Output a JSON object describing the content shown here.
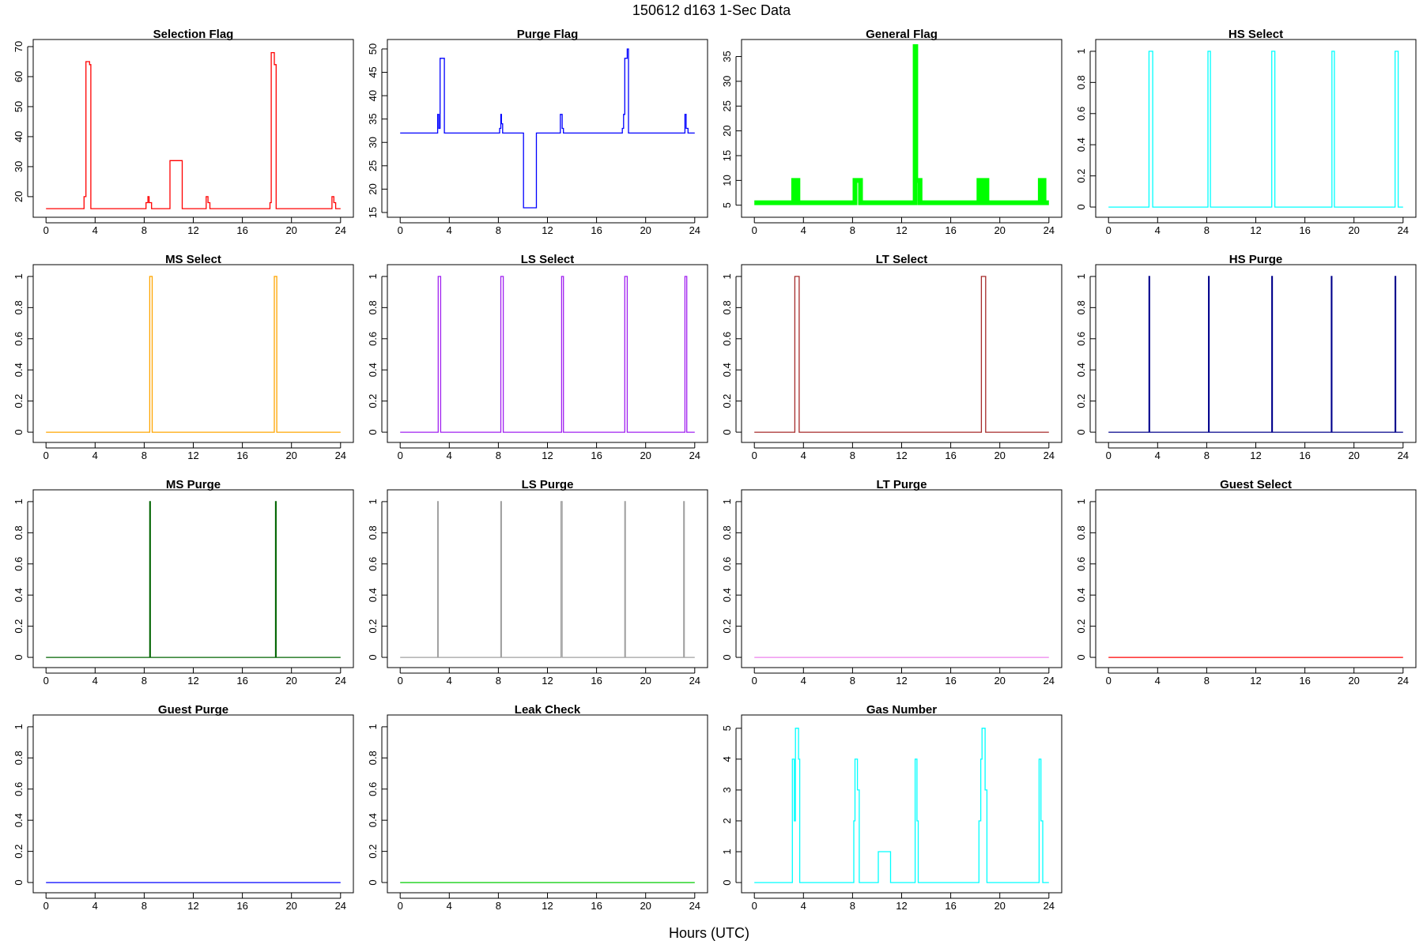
{
  "title": "150612   d163   1-Sec Data",
  "xlabel": "Hours (UTC)",
  "chart_data": [
    {
      "type": "line",
      "title": "Selection Flag",
      "color": "#ff0000",
      "xlim": [
        0,
        24
      ],
      "ylim": [
        15.5,
        70
      ],
      "xticks": [
        0,
        4,
        8,
        12,
        16,
        20,
        24
      ],
      "yticks": [
        20,
        30,
        40,
        50,
        60,
        70
      ],
      "x": [
        0,
        3.1,
        3.1,
        3.25,
        3.25,
        3.55,
        3.55,
        3.65,
        3.65,
        8.15,
        8.15,
        8.3,
        8.3,
        8.4,
        8.4,
        8.6,
        8.6,
        10.1,
        10.1,
        11.1,
        11.1,
        13.05,
        13.05,
        13.2,
        13.2,
        13.35,
        13.35,
        18.25,
        18.25,
        18.35,
        18.35,
        18.6,
        18.6,
        18.75,
        18.75,
        23.3,
        23.3,
        23.45,
        23.45,
        23.6,
        23.6,
        24
      ],
      "y": [
        16,
        16,
        20,
        20,
        65,
        65,
        64,
        64,
        16,
        16,
        18,
        18,
        20,
        20,
        18,
        18,
        16,
        16,
        32,
        32,
        16,
        16,
        20,
        20,
        18,
        18,
        16,
        16,
        18,
        18,
        68,
        68,
        64,
        64,
        16,
        16,
        20,
        20,
        18,
        18,
        16,
        16
      ]
    },
    {
      "type": "line",
      "title": "Purge Flag",
      "color": "#0000ff",
      "xlim": [
        0,
        24
      ],
      "ylim": [
        15.5,
        50.5
      ],
      "xticks": [
        0,
        4,
        8,
        12,
        16,
        20,
        24
      ],
      "yticks": [
        15,
        20,
        25,
        30,
        35,
        40,
        45,
        50
      ],
      "x": [
        0,
        3.05,
        3.05,
        3.15,
        3.15,
        3.25,
        3.25,
        3.6,
        3.6,
        8.1,
        8.1,
        8.2,
        8.2,
        8.25,
        8.25,
        8.35,
        8.35,
        10.05,
        10.05,
        11.1,
        11.1,
        13.05,
        13.05,
        13.2,
        13.2,
        13.3,
        13.3,
        18.1,
        18.1,
        18.2,
        18.2,
        18.3,
        18.3,
        18.5,
        18.5,
        18.6,
        18.6,
        23.2,
        23.2,
        23.3,
        23.3,
        23.45,
        23.45,
        24
      ],
      "y": [
        32,
        32,
        36,
        36,
        33,
        33,
        48,
        48,
        32,
        32,
        33,
        33,
        36,
        36,
        34,
        34,
        32,
        32,
        16,
        16,
        32,
        32,
        36,
        36,
        33,
        33,
        32,
        32,
        33,
        33,
        36,
        36,
        48,
        48,
        50,
        50,
        32,
        32,
        36,
        36,
        33,
        33,
        32,
        32
      ]
    },
    {
      "type": "line",
      "title": "General Flag",
      "color": "#00ff00",
      "xlim": [
        0,
        24
      ],
      "ylim": [
        4,
        37
      ],
      "xticks": [
        0,
        4,
        8,
        12,
        16,
        20,
        24
      ],
      "yticks": [
        5,
        10,
        15,
        20,
        25,
        30,
        35
      ],
      "x": [
        0,
        3.2,
        3.2,
        3.55,
        3.55,
        8.2,
        8.2,
        8.65,
        8.65,
        13.1,
        13.1,
        13.15,
        13.15,
        13.25,
        13.25,
        13.5,
        13.5,
        18.3,
        18.3,
        18.55,
        18.55,
        18.75,
        18.75,
        18.95,
        18.95,
        23.3,
        23.3,
        23.6,
        23.6,
        24
      ],
      "y": [
        5.5,
        5.5,
        10,
        10,
        5.5,
        5.5,
        10,
        10,
        5.5,
        5.5,
        37,
        37,
        10,
        10,
        10,
        10,
        5.5,
        5.5,
        10,
        10,
        5.5,
        5.5,
        10,
        10,
        5.5,
        5.5,
        10,
        10,
        5.5,
        5.5
      ]
    },
    {
      "type": "line",
      "title": "HS Select",
      "color": "#00ffff",
      "xlim": [
        0,
        24
      ],
      "ylim": [
        -0.02,
        1.03
      ],
      "xticks": [
        0,
        4,
        8,
        12,
        16,
        20,
        24
      ],
      "yticks": [
        0,
        0.2,
        0.4,
        0.6,
        0.8,
        1
      ],
      "x": [
        0,
        3.3,
        3.3,
        3.6,
        3.6,
        8.1,
        8.1,
        8.3,
        8.3,
        13.3,
        13.3,
        13.55,
        13.55,
        18.2,
        18.2,
        18.4,
        18.4,
        23.35,
        23.35,
        23.6,
        23.6,
        24
      ],
      "y": [
        0,
        0,
        1,
        1,
        0,
        0,
        1,
        1,
        0,
        0,
        1,
        1,
        0,
        0,
        1,
        1,
        0,
        0,
        1,
        1,
        0,
        0
      ]
    },
    {
      "type": "line",
      "title": "MS Select",
      "color": "#ffa500",
      "xlim": [
        0,
        24
      ],
      "ylim": [
        -0.02,
        1.03
      ],
      "xticks": [
        0,
        4,
        8,
        12,
        16,
        20,
        24
      ],
      "yticks": [
        0,
        0.2,
        0.4,
        0.6,
        0.8,
        1
      ],
      "x": [
        0,
        8.45,
        8.45,
        8.65,
        8.65,
        18.6,
        18.6,
        18.8,
        18.8,
        24
      ],
      "y": [
        0,
        0,
        1,
        1,
        0,
        0,
        1,
        1,
        0,
        0
      ]
    },
    {
      "type": "line",
      "title": "LS Select",
      "color": "#a020f0",
      "xlim": [
        0,
        24
      ],
      "ylim": [
        -0.02,
        1.03
      ],
      "xticks": [
        0,
        4,
        8,
        12,
        16,
        20,
        24
      ],
      "yticks": [
        0,
        0.2,
        0.4,
        0.6,
        0.8,
        1
      ],
      "x": [
        0,
        3.1,
        3.1,
        3.3,
        3.3,
        8.2,
        8.2,
        8.4,
        8.4,
        13.15,
        13.15,
        13.3,
        13.3,
        18.3,
        18.3,
        18.5,
        18.5,
        23.2,
        23.2,
        23.35,
        23.35,
        24
      ],
      "y": [
        0,
        0,
        1,
        1,
        0,
        0,
        1,
        1,
        0,
        0,
        1,
        1,
        0,
        0,
        1,
        1,
        0,
        0,
        1,
        1,
        0,
        0
      ]
    },
    {
      "type": "line",
      "title": "LT Select",
      "color": "#a52a2a",
      "xlim": [
        0,
        24
      ],
      "ylim": [
        -0.02,
        1.03
      ],
      "xticks": [
        0,
        4,
        8,
        12,
        16,
        20,
        24
      ],
      "yticks": [
        0,
        0.2,
        0.4,
        0.6,
        0.8,
        1
      ],
      "x": [
        0,
        3.3,
        3.3,
        3.65,
        3.65,
        18.5,
        18.5,
        18.85,
        18.85,
        24
      ],
      "y": [
        0,
        0,
        1,
        1,
        0,
        0,
        1,
        1,
        0,
        0
      ]
    },
    {
      "type": "line",
      "title": "HS Purge",
      "color": "#00008b",
      "xlim": [
        0,
        24
      ],
      "ylim": [
        -0.02,
        1.03
      ],
      "xticks": [
        0,
        4,
        8,
        12,
        16,
        20,
        24
      ],
      "yticks": [
        0,
        0.2,
        0.4,
        0.6,
        0.8,
        1
      ],
      "x": [
        0,
        3.3,
        3.3,
        3.35,
        3.35,
        8.15,
        8.15,
        8.2,
        8.2,
        13.3,
        13.3,
        13.35,
        13.35,
        18.15,
        18.15,
        18.2,
        18.2,
        23.35,
        23.35,
        23.4,
        23.4,
        24
      ],
      "y": [
        0,
        0,
        1,
        1,
        0,
        0,
        1,
        1,
        0,
        0,
        1,
        1,
        0,
        0,
        1,
        1,
        0,
        0,
        1,
        1,
        0,
        0
      ]
    },
    {
      "type": "line",
      "title": "MS Purge",
      "color": "#006400",
      "xlim": [
        0,
        24
      ],
      "ylim": [
        -0.02,
        1.03
      ],
      "xticks": [
        0,
        4,
        8,
        12,
        16,
        20,
        24
      ],
      "yticks": [
        0,
        0.2,
        0.4,
        0.6,
        0.8,
        1
      ],
      "x": [
        0,
        8.45,
        8.45,
        8.5,
        8.5,
        18.7,
        18.7,
        18.75,
        18.75,
        24
      ],
      "y": [
        0,
        0,
        1,
        1,
        0,
        0,
        1,
        1,
        0,
        0
      ]
    },
    {
      "type": "line",
      "title": "LS Purge",
      "color": "#a0a0a0",
      "xlim": [
        0,
        24
      ],
      "ylim": [
        -0.02,
        1.03
      ],
      "xticks": [
        0,
        4,
        8,
        12,
        16,
        20,
        24
      ],
      "yticks": [
        0,
        0.2,
        0.4,
        0.6,
        0.8,
        1
      ],
      "x": [
        0,
        3.05,
        3.05,
        3.1,
        3.1,
        8.2,
        8.2,
        8.25,
        8.25,
        13.1,
        13.1,
        13.2,
        13.2,
        18.3,
        18.3,
        18.35,
        18.35,
        23.1,
        23.1,
        23.15,
        23.15,
        24
      ],
      "y": [
        0,
        0,
        1,
        1,
        0,
        0,
        1,
        1,
        0,
        0,
        1,
        1,
        0,
        0,
        1,
        1,
        0,
        0,
        1,
        1,
        0,
        0
      ]
    },
    {
      "type": "line",
      "title": "LT Purge",
      "color": "#ee82ee",
      "xlim": [
        0,
        24
      ],
      "ylim": [
        -0.02,
        1.03
      ],
      "xticks": [
        0,
        4,
        8,
        12,
        16,
        20,
        24
      ],
      "yticks": [
        0,
        0.2,
        0.4,
        0.6,
        0.8,
        1
      ],
      "x": [
        0,
        24
      ],
      "y": [
        0,
        0
      ]
    },
    {
      "type": "line",
      "title": "Guest Select",
      "color": "#ff0000",
      "xlim": [
        0,
        24
      ],
      "ylim": [
        -0.02,
        1.03
      ],
      "xticks": [
        0,
        4,
        8,
        12,
        16,
        20,
        24
      ],
      "yticks": [
        0,
        0.2,
        0.4,
        0.6,
        0.8,
        1
      ],
      "x": [
        0,
        24
      ],
      "y": [
        0,
        0
      ]
    },
    {
      "type": "line",
      "title": "Guest Purge",
      "color": "#0000ff",
      "xlim": [
        0,
        24
      ],
      "ylim": [
        -0.02,
        1.03
      ],
      "xticks": [
        0,
        4,
        8,
        12,
        16,
        20,
        24
      ],
      "yticks": [
        0,
        0.2,
        0.4,
        0.6,
        0.8,
        1
      ],
      "x": [
        0,
        24
      ],
      "y": [
        0,
        0
      ]
    },
    {
      "type": "line",
      "title": "Leak Check",
      "color": "#00cc00",
      "xlim": [
        0,
        24
      ],
      "ylim": [
        -0.02,
        1.03
      ],
      "xticks": [
        0,
        4,
        8,
        12,
        16,
        20,
        24
      ],
      "yticks": [
        0,
        0.2,
        0.4,
        0.6,
        0.8,
        1
      ],
      "x": [
        0,
        24
      ],
      "y": [
        0,
        0
      ]
    },
    {
      "type": "line",
      "title": "Gas Number",
      "color": "#00ffff",
      "xlim": [
        0,
        24
      ],
      "ylim": [
        -0.1,
        5.2
      ],
      "xticks": [
        0,
        4,
        8,
        12,
        16,
        20,
        24
      ],
      "yticks": [
        0,
        1,
        2,
        3,
        4,
        5
      ],
      "x": [
        0,
        3.1,
        3.1,
        3.25,
        3.25,
        3.35,
        3.35,
        3.6,
        3.6,
        3.7,
        3.7,
        8.1,
        8.1,
        8.2,
        8.2,
        8.4,
        8.4,
        8.55,
        8.55,
        8.65,
        8.65,
        10.1,
        10.1,
        11.1,
        11.1,
        13.1,
        13.1,
        13.25,
        13.25,
        13.35,
        13.35,
        18.3,
        18.3,
        18.45,
        18.45,
        18.55,
        18.55,
        18.8,
        18.8,
        18.95,
        18.95,
        23.2,
        23.2,
        23.35,
        23.35,
        23.5,
        23.5,
        24
      ],
      "y": [
        0,
        0,
        4,
        4,
        2,
        2,
        5,
        5,
        4,
        4,
        0,
        0,
        2,
        2,
        4,
        4,
        3,
        3,
        0,
        0,
        0,
        0,
        1,
        1,
        0,
        0,
        4,
        4,
        2,
        2,
        0,
        0,
        2,
        2,
        4,
        4,
        5,
        5,
        3,
        3,
        0,
        0,
        4,
        4,
        2,
        2,
        0,
        0
      ]
    }
  ]
}
